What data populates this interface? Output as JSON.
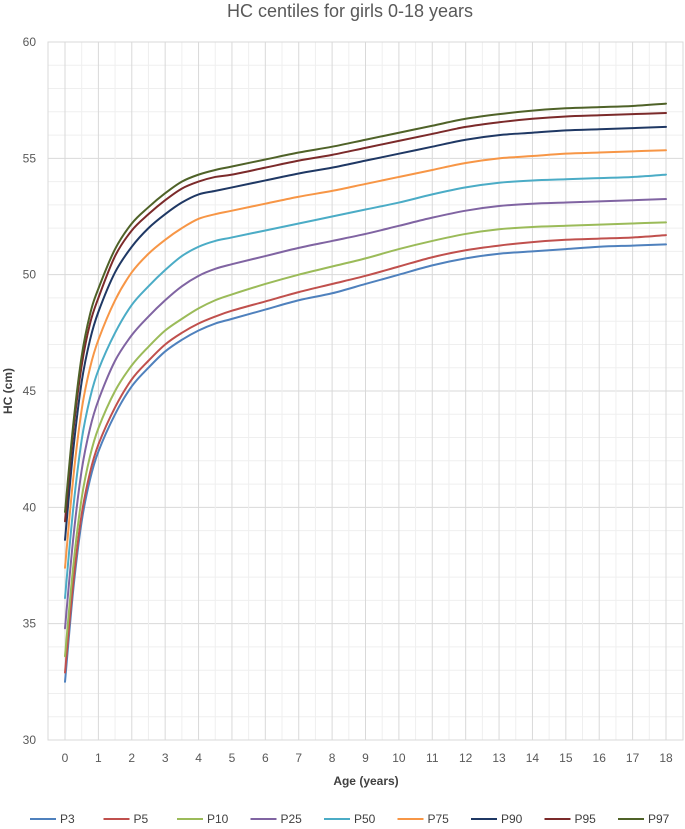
{
  "chart_data": {
    "type": "line",
    "title": "HC centiles for girls 0-18 years",
    "xlabel": "Age (years)",
    "ylabel": "HC (cm)",
    "xlim": [
      0,
      18
    ],
    "ylim": [
      30,
      60
    ],
    "x_ticks": [
      "0",
      "1",
      "2",
      "3",
      "4",
      "5",
      "6",
      "7",
      "8",
      "9",
      "10",
      "11",
      "12",
      "13",
      "14",
      "15",
      "16",
      "17",
      "18"
    ],
    "y_ticks": [
      "30",
      "35",
      "40",
      "45",
      "50",
      "55",
      "60"
    ],
    "grid": "on",
    "legend_position": "bottom",
    "x": [
      0,
      0.25,
      0.5,
      0.75,
      1,
      1.5,
      2,
      2.5,
      3,
      3.5,
      4,
      4.5,
      5,
      6,
      7,
      8,
      9,
      10,
      11,
      12,
      13,
      14,
      15,
      16,
      17,
      18
    ],
    "series": [
      {
        "name": "P3",
        "color": "#4f81bd",
        "values": [
          32.5,
          36.5,
          39.4,
          41.2,
          42.4,
          44.0,
          45.2,
          46.0,
          46.7,
          47.2,
          47.6,
          47.9,
          48.1,
          48.5,
          48.9,
          49.2,
          49.6,
          50.0,
          50.4,
          50.7,
          50.9,
          51.0,
          51.1,
          51.2,
          51.25,
          51.3
        ]
      },
      {
        "name": "P5",
        "color": "#c0504d",
        "values": [
          32.9,
          36.8,
          39.7,
          41.5,
          42.7,
          44.3,
          45.5,
          46.3,
          47.0,
          47.5,
          47.9,
          48.2,
          48.45,
          48.85,
          49.25,
          49.6,
          49.95,
          50.35,
          50.75,
          51.05,
          51.25,
          51.4,
          51.5,
          51.55,
          51.6,
          51.7
        ]
      },
      {
        "name": "P10",
        "color": "#9bbb59",
        "values": [
          33.6,
          37.5,
          40.4,
          42.2,
          43.4,
          45.0,
          46.1,
          46.9,
          47.6,
          48.1,
          48.55,
          48.9,
          49.15,
          49.6,
          50.0,
          50.35,
          50.7,
          51.1,
          51.45,
          51.75,
          51.95,
          52.05,
          52.1,
          52.15,
          52.2,
          52.25
        ]
      },
      {
        "name": "P25",
        "color": "#8064a2",
        "values": [
          34.8,
          38.7,
          41.6,
          43.4,
          44.6,
          46.3,
          47.4,
          48.2,
          48.9,
          49.5,
          49.95,
          50.25,
          50.45,
          50.8,
          51.15,
          51.45,
          51.75,
          52.1,
          52.45,
          52.75,
          52.95,
          53.05,
          53.1,
          53.15,
          53.2,
          53.25
        ]
      },
      {
        "name": "P50",
        "color": "#4bacc6",
        "values": [
          36.1,
          40.0,
          42.9,
          44.7,
          45.9,
          47.5,
          48.7,
          49.5,
          50.2,
          50.8,
          51.2,
          51.45,
          51.6,
          51.9,
          52.2,
          52.5,
          52.8,
          53.1,
          53.45,
          53.75,
          53.95,
          54.05,
          54.1,
          54.15,
          54.2,
          54.3
        ]
      },
      {
        "name": "P75",
        "color": "#f79646",
        "values": [
          37.4,
          41.3,
          44.2,
          46.0,
          47.2,
          48.9,
          50.1,
          50.9,
          51.5,
          52.0,
          52.4,
          52.6,
          52.75,
          53.05,
          53.35,
          53.6,
          53.9,
          54.2,
          54.5,
          54.8,
          55.0,
          55.1,
          55.2,
          55.25,
          55.3,
          55.35
        ]
      },
      {
        "name": "P90",
        "color": "#1f3864",
        "values": [
          38.6,
          42.5,
          45.4,
          47.2,
          48.4,
          50.1,
          51.2,
          52.0,
          52.6,
          53.1,
          53.45,
          53.6,
          53.75,
          54.05,
          54.35,
          54.6,
          54.9,
          55.2,
          55.5,
          55.8,
          56.0,
          56.1,
          56.2,
          56.25,
          56.3,
          56.35
        ]
      },
      {
        "name": "P95",
        "color": "#7b2a2a",
        "values": [
          39.4,
          43.3,
          46.1,
          47.9,
          49.0,
          50.8,
          51.9,
          52.6,
          53.2,
          53.7,
          54.0,
          54.2,
          54.3,
          54.6,
          54.9,
          55.15,
          55.45,
          55.75,
          56.05,
          56.35,
          56.55,
          56.7,
          56.8,
          56.85,
          56.9,
          56.95
        ]
      },
      {
        "name": "P97",
        "color": "#4f6228",
        "values": [
          39.8,
          43.6,
          46.5,
          48.3,
          49.4,
          51.1,
          52.2,
          52.9,
          53.5,
          54.0,
          54.3,
          54.5,
          54.65,
          54.95,
          55.25,
          55.5,
          55.8,
          56.1,
          56.4,
          56.7,
          56.9,
          57.05,
          57.15,
          57.2,
          57.25,
          57.35
        ]
      }
    ]
  }
}
